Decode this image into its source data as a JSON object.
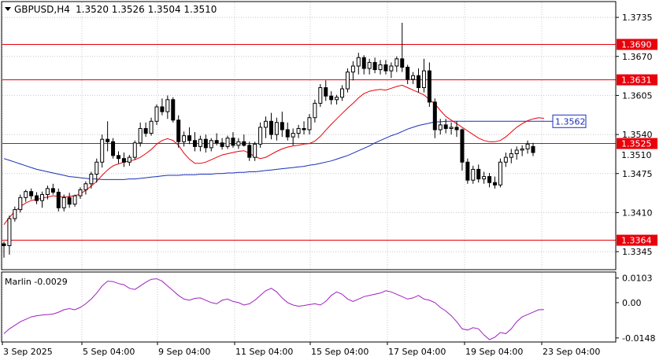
{
  "header": {
    "symbol_label": "GBPUSD,H4",
    "ohlc_label": "1.3520 1.3526 1.3504 1.3510"
  },
  "indicator": {
    "label": "Marlin -0.0029"
  },
  "colors": {
    "background": "#ffffff",
    "grid": "#c8c8c8",
    "candle": "#000000",
    "level_line": "#e8000b",
    "ma_red": "#e8000b",
    "ma_blue": "#1a2fb8",
    "oscillator": "#a020c0",
    "price_tag_red_bg": "#e8000b",
    "price_tag_text": "#ffffff",
    "blue_label_border": "#1a2fb8",
    "frame": "#000000"
  },
  "chart_data": {
    "type": "candlestick",
    "title": "GBPUSD,H4",
    "price_axis": {
      "ticks": [
        "1.3735",
        "1.3670",
        "1.3605",
        "1.3540",
        "1.3475",
        "1.3410",
        "1.3345"
      ],
      "range": [
        1.3315,
        1.376
      ]
    },
    "time_axis": {
      "ticks": [
        "3 Sep 2025",
        "5 Sep 04:00",
        "9 Sep 04:00",
        "11 Sep 04:00",
        "15 Sep 04:00",
        "17 Sep 04:00",
        "19 Sep 04:00",
        "23 Sep 04:00"
      ]
    },
    "levels": [
      {
        "value": 1.369,
        "label": "1.3690"
      },
      {
        "value": 1.3631,
        "label": "1.3631"
      },
      {
        "value": 1.3525,
        "label": "1.3525"
      },
      {
        "value": 1.3364,
        "label": "1.3364"
      }
    ],
    "current_price": {
      "value": 1.351,
      "label": "1.3510"
    },
    "blue_level_label": {
      "value": 1.3562,
      "label": "1.3562"
    },
    "candles": [
      [
        1.3358,
        1.3362,
        1.3335,
        1.3355
      ],
      [
        1.3355,
        1.3405,
        1.334,
        1.34
      ],
      [
        1.34,
        1.342,
        1.3395,
        1.3415
      ],
      [
        1.3415,
        1.344,
        1.341,
        1.3435
      ],
      [
        1.3435,
        1.3448,
        1.3428,
        1.3445
      ],
      [
        1.3445,
        1.345,
        1.3432,
        1.3438
      ],
      [
        1.3438,
        1.3444,
        1.3424,
        1.343
      ],
      [
        1.343,
        1.3445,
        1.3418,
        1.344
      ],
      [
        1.344,
        1.3455,
        1.3432,
        1.345
      ],
      [
        1.345,
        1.3458,
        1.344,
        1.3444
      ],
      [
        1.3444,
        1.345,
        1.3412,
        1.3418
      ],
      [
        1.3418,
        1.344,
        1.3412,
        1.3435
      ],
      [
        1.3435,
        1.3443,
        1.3418,
        1.3424
      ],
      [
        1.3424,
        1.344,
        1.342,
        1.3438
      ],
      [
        1.3438,
        1.3452,
        1.3433,
        1.3448
      ],
      [
        1.3448,
        1.3462,
        1.344,
        1.3458
      ],
      [
        1.3458,
        1.3478,
        1.345,
        1.3474
      ],
      [
        1.3474,
        1.35,
        1.346,
        1.3494
      ],
      [
        1.3494,
        1.354,
        1.3485,
        1.3532
      ],
      [
        1.3532,
        1.3562,
        1.3512,
        1.3528
      ],
      [
        1.3528,
        1.3534,
        1.35,
        1.3505
      ],
      [
        1.3505,
        1.3512,
        1.3492,
        1.35
      ],
      [
        1.35,
        1.351,
        1.3486,
        1.3494
      ],
      [
        1.3494,
        1.3506,
        1.3488,
        1.3502
      ],
      [
        1.3502,
        1.353,
        1.3498,
        1.3526
      ],
      [
        1.3526,
        1.356,
        1.352,
        1.355
      ],
      [
        1.355,
        1.356,
        1.3536,
        1.3542
      ],
      [
        1.3542,
        1.3568,
        1.3538,
        1.3562
      ],
      [
        1.3562,
        1.359,
        1.3556,
        1.3586
      ],
      [
        1.3586,
        1.36,
        1.3572,
        1.3578
      ],
      [
        1.3578,
        1.3605,
        1.3566,
        1.3598
      ],
      [
        1.3598,
        1.3602,
        1.356,
        1.3564
      ],
      [
        1.3564,
        1.3572,
        1.3518,
        1.3528
      ],
      [
        1.3528,
        1.3545,
        1.352,
        1.3538
      ],
      [
        1.3538,
        1.3552,
        1.3524,
        1.353
      ],
      [
        1.353,
        1.3544,
        1.3512,
        1.352
      ],
      [
        1.352,
        1.3538,
        1.3512,
        1.3532
      ],
      [
        1.3532,
        1.354,
        1.351,
        1.3518
      ],
      [
        1.3518,
        1.3534,
        1.3512,
        1.353
      ],
      [
        1.353,
        1.3542,
        1.3522,
        1.3526
      ],
      [
        1.3526,
        1.3534,
        1.3515,
        1.352
      ],
      [
        1.352,
        1.3538,
        1.3516,
        1.3534
      ],
      [
        1.3534,
        1.3544,
        1.3518,
        1.3522
      ],
      [
        1.3522,
        1.3534,
        1.3516,
        1.3528
      ],
      [
        1.3528,
        1.354,
        1.352,
        1.3522
      ],
      [
        1.3522,
        1.3528,
        1.3496,
        1.3502
      ],
      [
        1.3502,
        1.3528,
        1.3496,
        1.3524
      ],
      [
        1.3524,
        1.356,
        1.3518,
        1.3552
      ],
      [
        1.3552,
        1.357,
        1.3534,
        1.3562
      ],
      [
        1.3562,
        1.3576,
        1.3532,
        1.354
      ],
      [
        1.354,
        1.3568,
        1.353,
        1.356
      ],
      [
        1.356,
        1.3578,
        1.3536,
        1.3548
      ],
      [
        1.3548,
        1.356,
        1.353,
        1.3536
      ],
      [
        1.3536,
        1.355,
        1.3522,
        1.3542
      ],
      [
        1.3542,
        1.3556,
        1.3534,
        1.355
      ],
      [
        1.355,
        1.3562,
        1.354,
        1.3548
      ],
      [
        1.3548,
        1.3574,
        1.354,
        1.3568
      ],
      [
        1.3568,
        1.3598,
        1.356,
        1.3592
      ],
      [
        1.3592,
        1.3624,
        1.3586,
        1.3618
      ],
      [
        1.3618,
        1.363,
        1.3596,
        1.3604
      ],
      [
        1.3604,
        1.3612,
        1.359,
        1.3598
      ],
      [
        1.3598,
        1.3606,
        1.359,
        1.3602
      ],
      [
        1.3602,
        1.3622,
        1.3596,
        1.3616
      ],
      [
        1.3616,
        1.365,
        1.361,
        1.3644
      ],
      [
        1.3644,
        1.3662,
        1.363,
        1.3654
      ],
      [
        1.3654,
        1.3676,
        1.364,
        1.3668
      ],
      [
        1.3668,
        1.3672,
        1.364,
        1.365
      ],
      [
        1.365,
        1.3666,
        1.364,
        1.366
      ],
      [
        1.366,
        1.3668,
        1.3642,
        1.3648
      ],
      [
        1.3648,
        1.3664,
        1.364,
        1.3656
      ],
      [
        1.3656,
        1.3664,
        1.364,
        1.3646
      ],
      [
        1.3646,
        1.366,
        1.3634,
        1.3654
      ],
      [
        1.3654,
        1.367,
        1.3644,
        1.3666
      ],
      [
        1.3666,
        1.3726,
        1.3644,
        1.3652
      ],
      [
        1.3652,
        1.3656,
        1.3624,
        1.3632
      ],
      [
        1.3632,
        1.3644,
        1.3624,
        1.3638
      ],
      [
        1.3638,
        1.365,
        1.361,
        1.3618
      ],
      [
        1.3618,
        1.3666,
        1.361,
        1.3646
      ],
      [
        1.3646,
        1.366,
        1.3586,
        1.3594
      ],
      [
        1.3594,
        1.36,
        1.3534,
        1.3548
      ],
      [
        1.3548,
        1.3566,
        1.354,
        1.3556
      ],
      [
        1.3556,
        1.3566,
        1.3542,
        1.355
      ],
      [
        1.355,
        1.356,
        1.354,
        1.3552
      ],
      [
        1.3552,
        1.3562,
        1.3536,
        1.3548
      ],
      [
        1.3548,
        1.355,
        1.348,
        1.3494
      ],
      [
        1.3494,
        1.35,
        1.3458,
        1.3464
      ],
      [
        1.3464,
        1.3488,
        1.3458,
        1.3482
      ],
      [
        1.3482,
        1.349,
        1.346,
        1.3466
      ],
      [
        1.3466,
        1.3478,
        1.3458,
        1.347
      ],
      [
        1.347,
        1.3476,
        1.3452,
        1.346
      ],
      [
        1.346,
        1.347,
        1.345,
        1.3456
      ],
      [
        1.3456,
        1.35,
        1.3452,
        1.3494
      ],
      [
        1.3494,
        1.351,
        1.3486,
        1.3502
      ],
      [
        1.3502,
        1.3516,
        1.3492,
        1.3508
      ],
      [
        1.3508,
        1.352,
        1.3498,
        1.3514
      ],
      [
        1.3514,
        1.3522,
        1.3504,
        1.3516
      ],
      [
        1.3516,
        1.353,
        1.3508,
        1.3524
      ],
      [
        1.352,
        1.3526,
        1.3504,
        1.351
      ]
    ],
    "ma_red": [
      1.339,
      1.3402,
      1.3412,
      1.342,
      1.3426,
      1.343,
      1.3432,
      1.3434,
      1.3436,
      1.3438,
      1.3437,
      1.3436,
      1.3437,
      1.3438,
      1.3441,
      1.3447,
      1.3454,
      1.3462,
      1.3472,
      1.3481,
      1.3488,
      1.3491,
      1.3494,
      1.3496,
      1.3498,
      1.3502,
      1.3508,
      1.3515,
      1.3524,
      1.353,
      1.3533,
      1.353,
      1.3522,
      1.3509,
      1.3499,
      1.3492,
      1.3492,
      1.3494,
      1.3498,
      1.3502,
      1.3506,
      1.3508,
      1.351,
      1.3512,
      1.3513,
      1.3509,
      1.3503,
      1.35,
      1.3502,
      1.3507,
      1.3512,
      1.3516,
      1.3519,
      1.3521,
      1.3522,
      1.3524,
      1.3525,
      1.3529,
      1.3537,
      1.3547,
      1.3557,
      1.3566,
      1.3575,
      1.3584,
      1.3592,
      1.3601,
      1.3608,
      1.3612,
      1.3614,
      1.3615,
      1.3614,
      1.3617,
      1.362,
      1.3622,
      1.3618,
      1.3614,
      1.361,
      1.3606,
      1.3598,
      1.3591,
      1.358,
      1.357,
      1.3564,
      1.3558,
      1.3552,
      1.3546,
      1.354,
      1.3534,
      1.353,
      1.3528,
      1.3528,
      1.353,
      1.3536,
      1.3544,
      1.3552,
      1.3558,
      1.3563,
      1.3566,
      1.3568,
      1.3567
    ],
    "ma_blue": [
      1.35,
      1.3497,
      1.3494,
      1.3491,
      1.3488,
      1.3485,
      1.3482,
      1.348,
      1.3478,
      1.3476,
      1.3474,
      1.3472,
      1.347,
      1.3469,
      1.3468,
      1.3467,
      1.3466,
      1.3466,
      1.3465,
      1.3465,
      1.3465,
      1.3465,
      1.3465,
      1.3466,
      1.3466,
      1.3467,
      1.3468,
      1.3469,
      1.347,
      1.3471,
      1.3472,
      1.3472,
      1.3472,
      1.3473,
      1.3473,
      1.3473,
      1.3474,
      1.3474,
      1.3474,
      1.3475,
      1.3475,
      1.3476,
      1.3476,
      1.3477,
      1.3477,
      1.3478,
      1.3478,
      1.3479,
      1.348,
      1.3481,
      1.3482,
      1.3483,
      1.3484,
      1.3485,
      1.3486,
      1.3487,
      1.3489,
      1.349,
      1.3492,
      1.3494,
      1.3496,
      1.3499,
      1.3502,
      1.3505,
      1.3509,
      1.3513,
      1.3517,
      1.3521,
      1.3526,
      1.353,
      1.3534,
      1.3538,
      1.3541,
      1.3545,
      1.3549,
      1.3552,
      1.3555,
      1.3557,
      1.3559,
      1.3561,
      1.3561,
      1.3562,
      1.3562,
      1.3562,
      1.3562,
      1.3562,
      1.3562,
      1.3562,
      1.3562,
      1.3562,
      1.3562,
      1.3562,
      1.3562,
      1.3562,
      1.3562,
      1.3562,
      1.3562,
      1.3562,
      1.3562,
      1.3562
    ],
    "oscillator": {
      "name": "Marlin",
      "ticks": [
        "0.0103",
        "0.00",
        "-0.0148"
      ],
      "range": [
        -0.0165,
        0.0125
      ],
      "values": [
        -0.013,
        -0.011,
        -0.0095,
        -0.008,
        -0.007,
        -0.006,
        -0.0055,
        -0.0052,
        -0.005,
        -0.0048,
        -0.004,
        -0.003,
        -0.0025,
        -0.003,
        -0.002,
        -0.0005,
        0.0015,
        0.004,
        0.007,
        0.009,
        0.0088,
        0.008,
        0.0075,
        0.006,
        0.0055,
        0.007,
        0.0085,
        0.0098,
        0.01,
        0.009,
        0.007,
        0.005,
        0.003,
        0.0015,
        0.001,
        0.0018,
        0.002,
        0.001,
        0.0,
        -0.0005,
        0.001,
        0.0015,
        0.0005,
        0.0,
        -0.001,
        -0.0005,
        0.001,
        0.003,
        0.005,
        0.006,
        0.0045,
        0.002,
        0.0,
        -0.001,
        -0.0015,
        -0.0012,
        -0.0008,
        -0.0005,
        -0.001,
        0.0005,
        0.003,
        0.0045,
        0.0035,
        0.0015,
        0.0005,
        0.0015,
        0.0025,
        0.003,
        0.0035,
        0.004,
        0.005,
        0.0045,
        0.0035,
        0.0025,
        0.0015,
        0.002,
        0.003,
        0.0015,
        0.001,
        0.0,
        -0.002,
        -0.0035,
        -0.0055,
        -0.008,
        -0.011,
        -0.0115,
        -0.0105,
        -0.011,
        -0.0135,
        -0.0155,
        -0.0145,
        -0.0125,
        -0.013,
        -0.011,
        -0.008,
        -0.006,
        -0.005,
        -0.004,
        -0.003,
        -0.0029
      ]
    }
  }
}
